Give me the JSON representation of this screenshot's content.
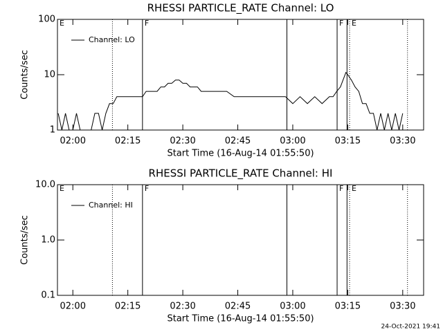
{
  "chart_data": [
    {
      "type": "line",
      "title": "RHESSI PARTICLE_RATE Channel: LO",
      "xlabel": "Start Time (16-Aug-14 01:55:50)",
      "ylabel": "Counts/sec",
      "log_y": true,
      "legend": "upper left",
      "xlim": [
        115.8,
        215.7
      ],
      "ylim": [
        1,
        100
      ],
      "xticks": [
        {
          "value": 120,
          "label": "02:00"
        },
        {
          "value": 135,
          "label": "02:15"
        },
        {
          "value": 150,
          "label": "02:30"
        },
        {
          "value": 165,
          "label": "02:45"
        },
        {
          "value": 180,
          "label": "03:00"
        },
        {
          "value": 195,
          "label": "03:15"
        },
        {
          "value": 210,
          "label": "03:30"
        }
      ],
      "yticks": [
        1,
        10,
        100
      ],
      "vlines": [
        {
          "x": 130.8,
          "style": "dotted"
        },
        {
          "x": 139,
          "style": "solid"
        },
        {
          "x": 178.4,
          "style": "solid"
        },
        {
          "x": 192.1,
          "style": "solid"
        },
        {
          "x": 194.8,
          "style": "solid"
        },
        {
          "x": 195.5,
          "style": "dotted"
        },
        {
          "x": 211.3,
          "style": "dotted"
        }
      ],
      "flags": [
        {
          "x": 115.8,
          "label": "E"
        },
        {
          "x": 139,
          "label": "F"
        },
        {
          "x": 192.1,
          "label": "F"
        },
        {
          "x": 195.5,
          "label": "E"
        }
      ],
      "series": [
        {
          "name": "Channel: LO",
          "color": "#000000",
          "x": [
            116,
            117,
            118,
            119,
            120,
            121,
            122,
            123,
            124,
            125,
            126,
            127,
            128,
            129,
            130,
            131,
            132,
            133,
            134,
            135,
            136,
            137,
            138,
            139,
            140,
            141,
            142,
            143,
            144,
            145,
            146,
            147,
            148,
            149,
            150,
            151,
            152,
            153,
            154,
            155,
            156,
            157,
            158,
            160,
            162,
            164,
            166,
            168,
            170,
            172,
            174,
            176,
            178,
            180,
            182,
            184,
            186,
            188,
            190,
            191,
            192,
            193,
            194,
            194.5,
            195,
            196,
            197,
            198,
            199,
            200,
            201,
            202,
            203,
            204,
            205,
            206,
            207,
            208,
            209,
            210
          ],
          "values": [
            2,
            1,
            2,
            1,
            1,
            2,
            1,
            1,
            1,
            1,
            2,
            2,
            1,
            2,
            3,
            3,
            4,
            4,
            4,
            4,
            4,
            4,
            4,
            4,
            5,
            5,
            5,
            5,
            6,
            6,
            7,
            7,
            8,
            8,
            7,
            7,
            6,
            6,
            6,
            5,
            5,
            5,
            5,
            5,
            5,
            4,
            4,
            4,
            4,
            4,
            4,
            4,
            4,
            3,
            4,
            3,
            4,
            3,
            4,
            4,
            5,
            6,
            9,
            11,
            10,
            8,
            6,
            5,
            3,
            3,
            2,
            2,
            1,
            2,
            1,
            2,
            1,
            2,
            1,
            2
          ]
        }
      ]
    },
    {
      "type": "line",
      "title": "RHESSI PARTICLE_RATE Channel: HI",
      "xlabel": "Start Time (16-Aug-14 01:55:50)",
      "ylabel": "Counts/sec",
      "log_y": true,
      "legend": "upper left",
      "xlim": [
        115.8,
        215.7
      ],
      "ylim": [
        0.1,
        10
      ],
      "xticks": [
        {
          "value": 120,
          "label": "02:00"
        },
        {
          "value": 135,
          "label": "02:15"
        },
        {
          "value": 150,
          "label": "02:30"
        },
        {
          "value": 165,
          "label": "02:45"
        },
        {
          "value": 180,
          "label": "03:00"
        },
        {
          "value": 195,
          "label": "03:15"
        },
        {
          "value": 210,
          "label": "03:30"
        }
      ],
      "yticks": [
        0.1,
        {
          "value": 1,
          "label": "1.0"
        },
        {
          "value": 10,
          "label": "10.0"
        }
      ],
      "vlines": [
        {
          "x": 130.8,
          "style": "dotted"
        },
        {
          "x": 139,
          "style": "solid"
        },
        {
          "x": 178.4,
          "style": "solid"
        },
        {
          "x": 192.1,
          "style": "solid"
        },
        {
          "x": 194.8,
          "style": "solid"
        },
        {
          "x": 195.5,
          "style": "dotted"
        },
        {
          "x": 211.3,
          "style": "dotted"
        }
      ],
      "flags": [
        {
          "x": 115.8,
          "label": "E"
        },
        {
          "x": 139,
          "label": "F"
        },
        {
          "x": 192.1,
          "label": "F"
        },
        {
          "x": 195.5,
          "label": "E"
        }
      ],
      "series": [
        {
          "name": "Channel: HI",
          "color": "#000000",
          "x": [],
          "values": []
        }
      ]
    }
  ],
  "footer": "24-Oct-2021 19:41"
}
